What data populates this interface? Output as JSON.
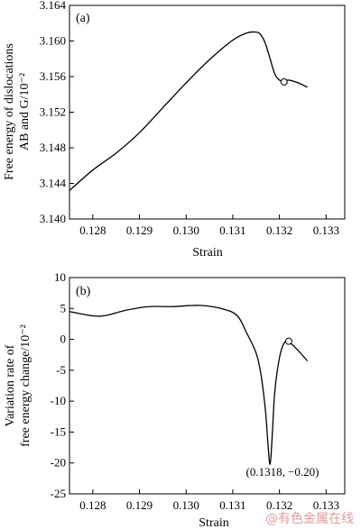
{
  "chart_data": [
    {
      "type": "line",
      "panel_label": "(a)",
      "xlabel": "Strain",
      "ylabel_line1": "Free energy of dislocations",
      "ylabel_line2": "AB and G/10⁻²",
      "xlim": [
        0.1275,
        0.1334
      ],
      "ylim": [
        3.14,
        3.164
      ],
      "xticks": [
        "0.128",
        "0.129",
        "0.130",
        "0.131",
        "0.132",
        "0.133"
      ],
      "yticks": [
        "3.140",
        "3.144",
        "3.148",
        "3.152",
        "3.156",
        "3.160",
        "3.164"
      ],
      "series": [
        {
          "x": [
            0.1275,
            0.128,
            0.1285,
            0.129,
            0.1295,
            0.13,
            0.1305,
            0.131,
            0.1313,
            0.1315,
            0.1316,
            0.1317,
            0.1318,
            0.1319,
            0.132,
            0.1321,
            0.1322,
            0.1324,
            0.1326
          ],
          "y": [
            3.1432,
            3.1455,
            3.1474,
            3.1497,
            3.1525,
            3.1553,
            3.1579,
            3.1601,
            3.1609,
            3.161,
            3.1607,
            3.1597,
            3.158,
            3.1563,
            3.1556,
            3.1555,
            3.1556,
            3.1553,
            3.1548
          ]
        }
      ],
      "marker": {
        "x": 0.1321,
        "y": 3.1554
      }
    },
    {
      "type": "line",
      "panel_label": "(b)",
      "xlabel": "Strain",
      "ylabel_line1": "Variation rate of",
      "ylabel_line2": "free energy change/10⁻²",
      "xlim": [
        0.1275,
        0.1334
      ],
      "ylim": [
        -25,
        10
      ],
      "xticks": [
        "0.128",
        "0.129",
        "0.130",
        "0.131",
        "0.132",
        "0.133"
      ],
      "yticks": [
        "-25",
        "-20",
        "-15",
        "-10",
        "-5",
        "0",
        "5",
        "10"
      ],
      "annotation": "(0.1318, −0.20)",
      "series": [
        {
          "x": [
            0.1275,
            0.128,
            0.1283,
            0.1287,
            0.1292,
            0.1297,
            0.1303,
            0.1308,
            0.1311,
            0.1313,
            0.1315,
            0.1316,
            0.1317,
            0.13175,
            0.1318,
            0.13185,
            0.1319,
            0.132,
            0.1321,
            0.1322,
            0.1324,
            0.1326
          ],
          "y": [
            4.5,
            3.8,
            3.9,
            4.7,
            5.3,
            5.3,
            5.5,
            4.9,
            3.8,
            1.0,
            -2.2,
            -5.5,
            -11.5,
            -16.5,
            -20.2,
            -15.0,
            -8.5,
            -3.0,
            -0.6,
            -0.4,
            -1.8,
            -3.5
          ]
        }
      ],
      "marker": {
        "x": 0.1322,
        "y": -0.3
      }
    }
  ],
  "watermark": "@有色金属在线"
}
